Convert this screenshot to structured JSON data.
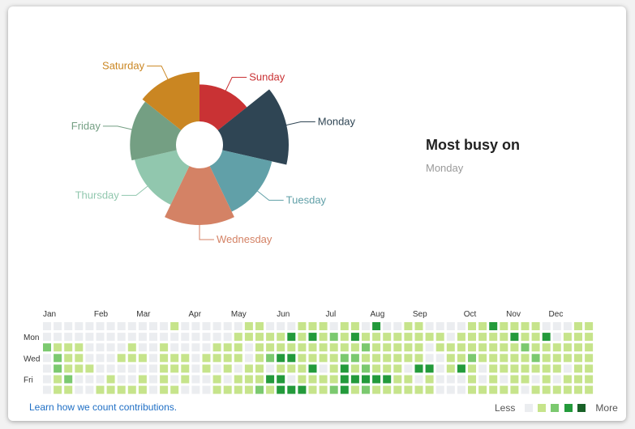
{
  "chart_data": [
    {
      "type": "pie",
      "variant": "rose",
      "title": "",
      "categories": [
        "Sunday",
        "Monday",
        "Tuesday",
        "Wednesday",
        "Thursday",
        "Friday",
        "Saturday"
      ],
      "values": [
        62,
        110,
        85,
        95,
        72,
        77,
        83
      ],
      "colors": [
        "#c93234",
        "#2f4554",
        "#61a0a8",
        "#d48265",
        "#91c7ae",
        "#749f83",
        "#ca8622"
      ]
    },
    {
      "type": "heatmap",
      "title": "",
      "months": [
        "Jan",
        "Feb",
        "Mar",
        "Apr",
        "May",
        "Jun",
        "Jul",
        "Aug",
        "Sep",
        "Oct",
        "Nov",
        "Dec"
      ],
      "weekday_labels": [
        "Mon",
        "Wed",
        "Fri"
      ],
      "levels": [
        "#ebedf0",
        "#c6e48b",
        "#7bc96f",
        "#239a3b",
        "#196127"
      ],
      "weeks": [
        "0020000",
        "0012211",
        "0011121",
        "0011100",
        "0000100",
        "0000001",
        "0000011",
        "0001001",
        "0011001",
        "0001011",
        "0000000",
        "0011111",
        "1001101",
        "0001110",
        "0000000",
        "0001100",
        "0011011",
        "0011101",
        "0111011",
        "1100111",
        "1111112",
        "0112031",
        "0113133",
        "0313103",
        "1111113",
        "1311311",
        "1111011",
        "0211112",
        "1112333",
        "1312131",
        "0121232",
        "3111131",
        "0111131",
        "0111111",
        "1111011",
        "1111301",
        "0100311",
        "0110000",
        "0011100",
        "0111300",
        "1112111",
        "1111001",
        "3111111",
        "1111101",
        "1311111",
        "1121110",
        "1112101",
        "0311111",
        "0011101",
        "0111011",
        "1111111",
        "1111111"
      ]
    }
  ],
  "busy": {
    "title": "Most busy on",
    "day": "Monday"
  },
  "footer": {
    "learn_link": "Learn how we count contributions.",
    "less": "Less",
    "more": "More"
  }
}
